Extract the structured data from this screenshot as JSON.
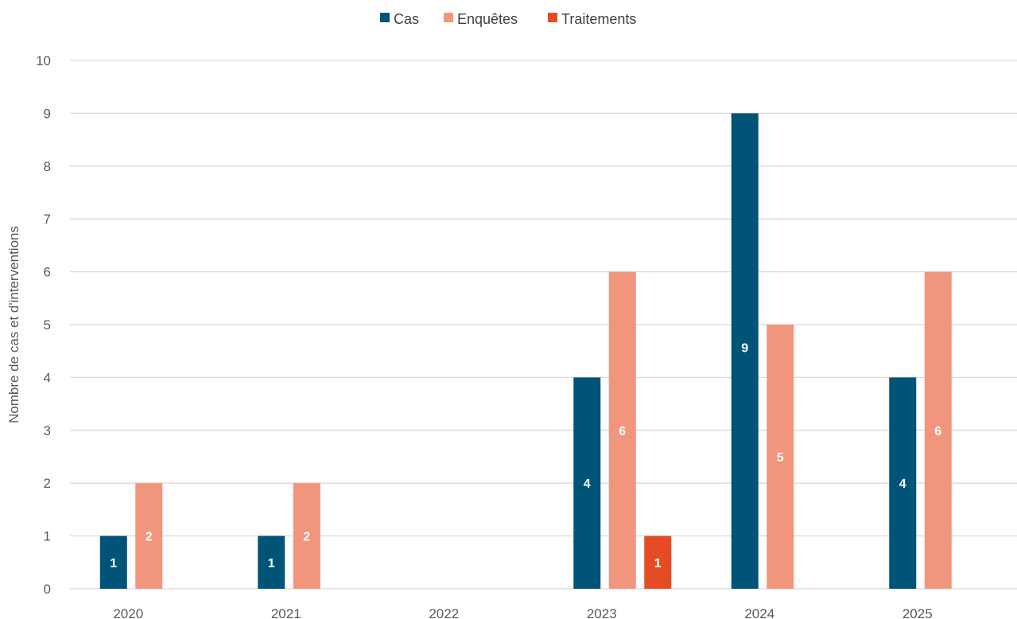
{
  "chart_data": {
    "type": "bar",
    "categories": [
      "2020",
      "2021",
      "2022",
      "2023",
      "2024",
      "2025"
    ],
    "series": [
      {
        "name": "Cas",
        "color": "#005477",
        "values": [
          1,
          1,
          0,
          4,
          9,
          4
        ]
      },
      {
        "name": "Enquêtes",
        "color": "#f1967c",
        "values": [
          2,
          2,
          0,
          6,
          5,
          6
        ]
      },
      {
        "name": "Traitements",
        "color": "#e64c23",
        "values": [
          0,
          0,
          0,
          1,
          0,
          0
        ]
      }
    ],
    "ylabel": "Nombre de cas et d'interventions",
    "ylim": [
      0,
      10
    ],
    "yticks": [
      "0",
      "1",
      "2",
      "3",
      "4",
      "5",
      "6",
      "7",
      "8",
      "9",
      "10"
    ],
    "grid": true,
    "legend": "top-center"
  }
}
